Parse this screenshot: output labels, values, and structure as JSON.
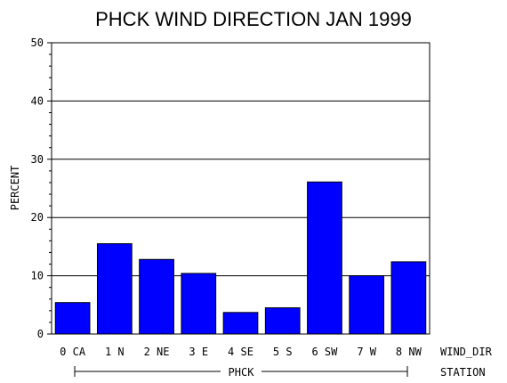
{
  "chart_data": {
    "type": "bar",
    "title": "PHCK WIND DIRECTION JAN 1999",
    "ylabel": "PERCENT",
    "xlabel": "WIND_DIR",
    "group_label": "PHCK",
    "group_axis_label": "STATION",
    "ylim": [
      0,
      50
    ],
    "yticks": [
      "0",
      "10",
      "20",
      "30",
      "40",
      "50"
    ],
    "grid": true,
    "categories": [
      "0 CA",
      "1 N",
      "2 NE",
      "3 E",
      "4 SE",
      "5 S",
      "6 SW",
      "7 W",
      "8 NW"
    ],
    "values": [
      5.4,
      15.5,
      12.8,
      10.4,
      3.7,
      4.5,
      26.1,
      10.0,
      12.4
    ],
    "bar_color": "#0000ff"
  }
}
